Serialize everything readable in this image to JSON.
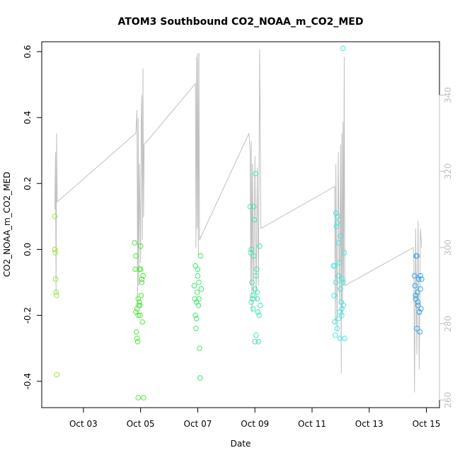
{
  "chart_data": {
    "type": "scatter",
    "title": "ATOM3 Southbound CO2_NOAA_m_CO2_MED",
    "xlabel": "Date",
    "ylabel": "CO2_NOAA_m_CO2_MED",
    "xlim": [
      "2016-10-01T13:00",
      "2016-10-15T11:00"
    ],
    "ylim": [
      -0.48,
      0.63
    ],
    "right_ylim": [
      258,
      354
    ],
    "x_ticks": [
      {
        "value": "2016-10-03",
        "label": "Oct 03"
      },
      {
        "value": "2016-10-05",
        "label": "Oct 05"
      },
      {
        "value": "2016-10-07",
        "label": "Oct 07"
      },
      {
        "value": "2016-10-09",
        "label": "Oct 09"
      },
      {
        "value": "2016-10-11",
        "label": "Oct 11"
      },
      {
        "value": "2016-10-13",
        "label": "Oct 13"
      },
      {
        "value": "2016-10-15",
        "label": "Oct 15"
      }
    ],
    "y_ticks": [
      {
        "value": 0.6,
        "label": "0.6"
      },
      {
        "value": 0.4,
        "label": "0.4"
      },
      {
        "value": 0.2,
        "label": "0.2"
      },
      {
        "value": 0.0,
        "label": "0.0"
      },
      {
        "value": -0.2,
        "label": "-0.2"
      },
      {
        "value": -0.4,
        "label": "-0.4"
      }
    ],
    "right_y_ticks": [
      {
        "value": 260,
        "label": "260"
      },
      {
        "value": 280,
        "label": "280"
      },
      {
        "value": 300,
        "label": "300"
      },
      {
        "value": 320,
        "label": "320"
      },
      {
        "value": 340,
        "label": "340"
      }
    ],
    "grid": false,
    "legend": "none",
    "colors": {
      "trace": "#c0c0c0",
      "right_axis": "#bfbfbf",
      "axis": "#000000"
    },
    "trace_right_axis": [
      [
        "2016-10-02T00:00",
        310
      ],
      [
        "2016-10-02T00:30",
        325
      ],
      [
        "2016-10-02T01:00",
        288
      ],
      [
        "2016-10-02T01:30",
        330
      ],
      [
        "2016-10-02T02:00",
        312
      ],
      [
        "2016-10-04T20:00",
        330
      ],
      [
        "2016-10-04T21:00",
        336
      ],
      [
        "2016-10-04T21:30",
        285
      ],
      [
        "2016-10-04T22:00",
        334
      ],
      [
        "2016-10-04T22:30",
        290
      ],
      [
        "2016-10-04T23:00",
        322
      ],
      [
        "2016-10-05T00:00",
        296
      ],
      [
        "2016-10-05T00:30",
        333
      ],
      [
        "2016-10-05T01:00",
        340
      ],
      [
        "2016-10-05T01:30",
        302
      ],
      [
        "2016-10-05T02:00",
        347
      ],
      [
        "2016-10-05T02:30",
        308
      ],
      [
        "2016-10-05T03:00",
        327
      ],
      [
        "2016-10-06T22:00",
        343
      ],
      [
        "2016-10-06T22:30",
        300
      ],
      [
        "2016-10-06T23:00",
        350
      ],
      [
        "2016-10-06T23:30",
        305
      ],
      [
        "2016-10-07T00:00",
        351
      ],
      [
        "2016-10-07T00:30",
        298
      ],
      [
        "2016-10-07T01:00",
        351
      ],
      [
        "2016-10-07T01:30",
        302
      ],
      [
        "2016-10-08T19:00",
        330
      ],
      [
        "2016-10-08T20:00",
        325
      ],
      [
        "2016-10-08T20:30",
        290
      ],
      [
        "2016-10-08T21:00",
        328
      ],
      [
        "2016-10-08T21:30",
        283
      ],
      [
        "2016-10-08T22:00",
        322
      ],
      [
        "2016-10-08T23:00",
        288
      ],
      [
        "2016-10-09T00:00",
        324
      ],
      [
        "2016-10-09T01:00",
        286
      ],
      [
        "2016-10-09T02:00",
        321
      ],
      [
        "2016-10-09T03:00",
        290
      ],
      [
        "2016-10-09T04:00",
        352
      ],
      [
        "2016-10-09T05:00",
        305
      ],
      [
        "2016-10-11T19:00",
        316
      ],
      [
        "2016-10-11T19:30",
        280
      ],
      [
        "2016-10-11T20:00",
        322
      ],
      [
        "2016-10-11T21:00",
        278
      ],
      [
        "2016-10-11T22:00",
        325
      ],
      [
        "2016-10-11T23:00",
        285
      ],
      [
        "2016-10-12T00:00",
        327
      ],
      [
        "2016-10-12T00:30",
        267
      ],
      [
        "2016-10-12T01:00",
        330
      ],
      [
        "2016-10-12T01:30",
        282
      ],
      [
        "2016-10-12T02:00",
        333
      ],
      [
        "2016-10-12T02:30",
        290
      ],
      [
        "2016-10-12T03:00",
        350
      ],
      [
        "2016-10-12T03:30",
        290
      ],
      [
        "2016-10-14T13:00",
        300
      ],
      [
        "2016-10-14T13:30",
        296
      ],
      [
        "2016-10-14T14:00",
        262
      ],
      [
        "2016-10-14T15:00",
        305
      ],
      [
        "2016-10-14T16:00",
        272
      ],
      [
        "2016-10-14T17:00",
        307
      ],
      [
        "2016-10-14T18:00",
        268
      ],
      [
        "2016-10-14T19:00",
        305
      ],
      [
        "2016-10-14T20:00",
        300
      ]
    ],
    "series": [
      {
        "color": "#9be82f",
        "x": [
          "2016-10-02T00:00",
          "2016-10-02T00:00",
          "2016-10-02T00:20",
          "2016-10-02T00:40",
          "2016-10-02T01:00",
          "2016-10-02T01:20",
          "2016-10-02T01:40"
        ],
        "values": [
          0.1,
          0.0,
          -0.01,
          -0.09,
          -0.13,
          -0.14,
          -0.38
        ]
      },
      {
        "color": "#4ee83a",
        "x": [
          "2016-10-04T19:00",
          "2016-10-04T19:30",
          "2016-10-04T20:00",
          "2016-10-04T20:30",
          "2016-10-04T21:00",
          "2016-10-04T21:30",
          "2016-10-04T22:00",
          "2016-10-04T22:30",
          "2016-10-04T23:00",
          "2016-10-04T23:30",
          "2016-10-05T00:00",
          "2016-10-05T00:30",
          "2016-10-05T01:00",
          "2016-10-05T01:30",
          "2016-10-05T02:00",
          "2016-10-05T02:30",
          "2016-10-04T20:00",
          "2016-10-04T21:00",
          "2016-10-04T22:00",
          "2016-10-04T23:00",
          "2016-10-05T00:00",
          "2016-10-05T01:00",
          "2016-10-04T22:00",
          "2016-10-04T23:30"
        ],
        "values": [
          0.02,
          -0.06,
          -0.19,
          -0.25,
          -0.27,
          -0.28,
          -0.15,
          -0.17,
          -0.06,
          -0.2,
          0.01,
          -0.14,
          -0.1,
          -0.22,
          -0.08,
          -0.45,
          -0.02,
          -0.18,
          -0.2,
          -0.16,
          -0.06,
          -0.09,
          -0.45,
          -0.17
        ]
      },
      {
        "color": "#3fe86b",
        "x": [
          "2016-10-06T21:00",
          "2016-10-06T21:30",
          "2016-10-06T22:00",
          "2016-10-06T22:30",
          "2016-10-06T23:00",
          "2016-10-06T23:30",
          "2016-10-07T00:00",
          "2016-10-07T00:30",
          "2016-10-07T01:00",
          "2016-10-07T01:30",
          "2016-10-07T02:00",
          "2016-10-07T02:30",
          "2016-10-07T03:00",
          "2016-10-06T22:00",
          "2016-10-06T23:00",
          "2016-10-07T00:00",
          "2016-10-07T01:00"
        ],
        "values": [
          -0.11,
          -0.15,
          -0.2,
          -0.24,
          -0.21,
          -0.13,
          -0.08,
          -0.17,
          -0.1,
          -0.3,
          -0.39,
          -0.02,
          -0.12,
          -0.05,
          -0.16,
          -0.06,
          -0.15
        ]
      },
      {
        "color": "#3fe8b0",
        "x": [
          "2016-10-08T20:00",
          "2016-10-08T20:30",
          "2016-10-08T21:00",
          "2016-10-08T21:30",
          "2016-10-08T22:00",
          "2016-10-08T22:30",
          "2016-10-08T23:00",
          "2016-10-08T23:30",
          "2016-10-09T00:00",
          "2016-10-09T00:30",
          "2016-10-09T01:00",
          "2016-10-09T01:30",
          "2016-10-09T02:00",
          "2016-10-09T02:30",
          "2016-10-09T03:00",
          "2016-10-09T03:30",
          "2016-10-09T04:00",
          "2016-10-09T04:30",
          "2016-10-08T21:00",
          "2016-10-08T22:00",
          "2016-10-08T23:00",
          "2016-10-09T00:00",
          "2016-10-09T01:00",
          "2016-10-09T02:00"
        ],
        "values": [
          0.13,
          -0.01,
          -0.16,
          -0.1,
          -0.15,
          -0.18,
          0.13,
          0.09,
          -0.28,
          0.23,
          -0.26,
          -0.06,
          -0.13,
          -0.19,
          -0.28,
          -0.2,
          0.01,
          -0.17,
          0.0,
          -0.14,
          -0.02,
          -0.12,
          -0.08,
          -0.15
        ]
      },
      {
        "color": "#3fe8e0",
        "x": [
          "2016-10-11T18:00",
          "2016-10-11T18:30",
          "2016-10-11T19:00",
          "2016-10-11T19:30",
          "2016-10-11T20:00",
          "2016-10-11T20:30",
          "2016-10-11T21:00",
          "2016-10-11T21:30",
          "2016-10-11T22:00",
          "2016-10-11T22:30",
          "2016-10-11T23:00",
          "2016-10-11T23:30",
          "2016-10-12T00:00",
          "2016-10-12T00:30",
          "2016-10-12T01:00",
          "2016-10-12T01:30",
          "2016-10-12T02:00",
          "2016-10-12T02:30",
          "2016-10-12T03:00",
          "2016-10-12T03:30",
          "2016-10-11T19:00",
          "2016-10-11T20:00",
          "2016-10-11T21:00",
          "2016-10-11T22:00",
          "2016-10-11T23:00",
          "2016-10-12T00:00",
          "2016-10-12T01:00",
          "2016-10-12T02:00"
        ],
        "values": [
          -0.05,
          -0.14,
          -0.22,
          -0.26,
          0.11,
          0.07,
          -0.24,
          0.1,
          -0.08,
          0.02,
          -0.19,
          -0.27,
          0.04,
          -0.16,
          -0.2,
          -0.09,
          0.61,
          -0.17,
          -0.01,
          -0.27,
          -0.05,
          -0.1,
          0.08,
          -0.21,
          -0.04,
          -0.12,
          -0.18,
          -0.1
        ]
      },
      {
        "color": "#2fa8e8",
        "x": [
          "2016-10-14T14:00",
          "2016-10-14T14:30",
          "2016-10-14T15:00",
          "2016-10-14T15:30",
          "2016-10-14T16:00",
          "2016-10-14T16:30",
          "2016-10-14T17:00",
          "2016-10-14T17:30",
          "2016-10-14T18:00",
          "2016-10-14T18:30",
          "2016-10-14T19:00",
          "2016-10-14T19:30",
          "2016-10-14T20:00",
          "2016-10-14T15:00",
          "2016-10-14T16:00",
          "2016-10-14T17:00",
          "2016-10-14T18:00",
          "2016-10-14T19:00"
        ],
        "values": [
          -0.08,
          -0.11,
          -0.15,
          -0.02,
          -0.24,
          -0.13,
          -0.17,
          -0.09,
          -0.19,
          -0.25,
          -0.12,
          -0.18,
          -0.09,
          -0.14,
          -0.02,
          -0.16,
          -0.19,
          -0.08
        ]
      }
    ]
  }
}
